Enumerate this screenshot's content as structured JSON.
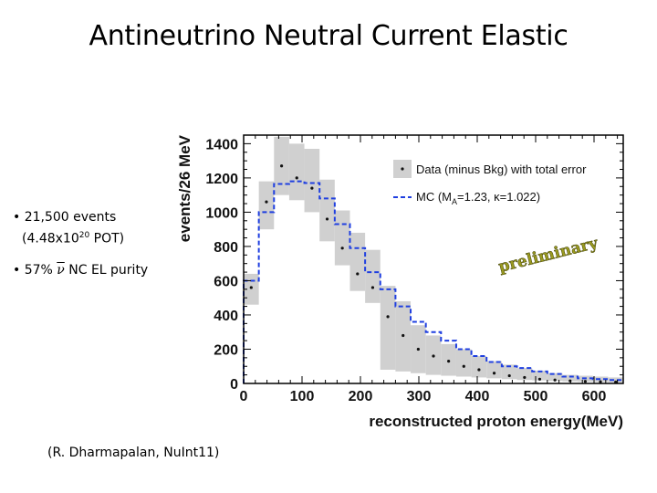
{
  "slide": {
    "title": "Antineutrino Neutral Current Elastic",
    "bullets": {
      "b1_line1": "• 21,500 events",
      "b1_line2_pre": "(4.48x10",
      "b1_line2_sup": "20",
      "b1_line2_post": " POT)",
      "b2_pre": "• 57% ",
      "b2_symbol": "ν",
      "b2_post": " NC EL purity"
    },
    "citation": "(R. Dharmapalan, NuInt11)"
  },
  "colors": {
    "band": "#d0d0d0",
    "mc_line": "#1f3fe0",
    "data_point": "#111111",
    "prelim_text": "#9a9a20"
  },
  "chart_data": {
    "type": "histogram",
    "xlabel": "reconstructed proton energy(MeV)",
    "ylabel": "events/26 MeV",
    "xlim": [
      0,
      650
    ],
    "ylim": [
      0,
      1450
    ],
    "x_ticks": [
      0,
      100,
      200,
      300,
      400,
      500,
      600
    ],
    "y_ticks": [
      0,
      200,
      400,
      600,
      800,
      1000,
      1200,
      1400
    ],
    "bin_width": 26,
    "bin_edges": [
      0,
      26,
      52,
      78,
      104,
      130,
      156,
      182,
      208,
      234,
      260,
      286,
      312,
      338,
      364,
      390,
      416,
      442,
      468,
      494,
      520,
      546,
      572,
      598,
      624,
      650
    ],
    "series": [
      {
        "name": "Data (minus Bkg) with total error",
        "style": "points-with-error-band",
        "values": [
          560,
          1060,
          1270,
          1200,
          1140,
          960,
          790,
          640,
          560,
          390,
          280,
          200,
          160,
          130,
          100,
          80,
          60,
          45,
          35,
          25,
          20,
          15,
          12,
          10,
          8
        ],
        "err_low": [
          460,
          900,
          1100,
          1070,
          1000,
          830,
          690,
          540,
          470,
          80,
          70,
          60,
          50,
          45,
          40,
          35,
          30,
          25,
          20,
          18,
          15,
          12,
          10,
          8,
          6
        ],
        "err_high": [
          640,
          1180,
          1440,
          1400,
          1370,
          1190,
          1010,
          880,
          780,
          570,
          480,
          340,
          280,
          230,
          200,
          160,
          130,
          110,
          90,
          75,
          60,
          50,
          45,
          40,
          35
        ]
      },
      {
        "name": "MC (M_A=1.23, κ=1.022)",
        "style": "dashed-step",
        "values": [
          600,
          1000,
          1165,
          1180,
          1170,
          1080,
          930,
          790,
          650,
          550,
          450,
          360,
          300,
          250,
          200,
          160,
          125,
          100,
          90,
          70,
          55,
          40,
          30,
          25,
          20
        ]
      }
    ],
    "legend": {
      "position": "top-right",
      "entries": [
        {
          "label": "Data (minus Bkg) with total error"
        },
        {
          "label_main": "MC (M",
          "label_sub": "A",
          "label_rest": "=1.23, κ=1.022)"
        }
      ]
    },
    "annotation": "preliminary"
  }
}
